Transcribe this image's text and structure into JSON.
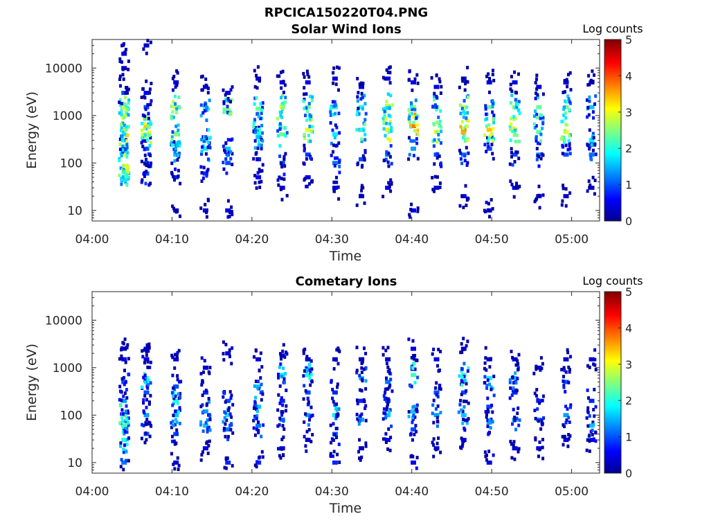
{
  "figure_title": "RPCICA150220T04.PNG",
  "panels": [
    {
      "title": "Solar Wind Ions",
      "ylabel": "Energy (eV)",
      "xlabel": "Time",
      "colorbar_label": "Log counts"
    },
    {
      "title": "Cometary Ions",
      "ylabel": "Energy (eV)",
      "xlabel": "Time",
      "colorbar_label": "Log counts"
    }
  ],
  "chart_data": [
    {
      "type": "heatmap",
      "title": "Solar Wind Ions",
      "xlabel": "Time",
      "ylabel": "Energy (eV)",
      "x_tick_labels": [
        "04:00",
        "04:10",
        "04:20",
        "04:30",
        "04:40",
        "04:50",
        "05:00"
      ],
      "x_tick_minutes": [
        0,
        10,
        20,
        30,
        40,
        50,
        60
      ],
      "xlim_minutes": [
        0,
        63.5
      ],
      "y_scale": "log",
      "ylim": [
        6,
        40000
      ],
      "y_tick_labels": [
        "10",
        "100",
        "1000",
        "10000"
      ],
      "y_ticks": [
        10,
        100,
        1000,
        10000
      ],
      "colorbar": {
        "label": "Log counts",
        "range": [
          0,
          5
        ],
        "ticks": [
          "0",
          "1",
          "2",
          "3",
          "4",
          "5"
        ],
        "colormap": "jet"
      },
      "scans": [
        {
          "t": 4.0,
          "points": [
            [
              50,
              2.6
            ],
            [
              70,
              3.0
            ],
            [
              150,
              2.9
            ],
            [
              300,
              2.0
            ],
            [
              500,
              3.4
            ],
            [
              1000,
              3.0
            ],
            [
              1500,
              3.0
            ],
            [
              3000,
              1.0
            ],
            [
              10000,
              0.4
            ],
            [
              20000,
              0.5
            ]
          ]
        },
        {
          "t": 6.8,
          "points": [
            [
              60,
              1.0
            ],
            [
              100,
              1.2
            ],
            [
              200,
              1.0
            ],
            [
              400,
              2.8
            ],
            [
              600,
              3.4
            ],
            [
              1500,
              1.0
            ],
            [
              3000,
              0.6
            ],
            [
              30000,
              0.4
            ]
          ]
        },
        {
          "t": 10.5,
          "points": [
            [
              10,
              0.4
            ],
            [
              50,
              0.8
            ],
            [
              150,
              1.6
            ],
            [
              250,
              2.0
            ],
            [
              400,
              2.6
            ],
            [
              1500,
              2.8
            ],
            [
              5000,
              0.5
            ]
          ]
        },
        {
          "t": 14.2,
          "points": [
            [
              10,
              0.4
            ],
            [
              60,
              0.8
            ],
            [
              200,
              1.8
            ],
            [
              300,
              2.0
            ],
            [
              1400,
              2.2
            ],
            [
              4000,
              0.5
            ]
          ]
        },
        {
          "t": 17.0,
          "points": [
            [
              10,
              0.5
            ],
            [
              100,
              1.0
            ],
            [
              200,
              1.6
            ],
            [
              1300,
              2.6
            ],
            [
              3000,
              0.5
            ]
          ]
        },
        {
          "t": 20.8,
          "points": [
            [
              50,
              0.6
            ],
            [
              120,
              0.8
            ],
            [
              350,
              1.6
            ],
            [
              500,
              2.2
            ],
            [
              1400,
              2.4
            ],
            [
              6000,
              0.4
            ]
          ]
        },
        {
          "t": 23.8,
          "points": [
            [
              30,
              0.5
            ],
            [
              100,
              1.0
            ],
            [
              400,
              2.4
            ],
            [
              1500,
              3.0
            ],
            [
              5000,
              0.6
            ]
          ]
        },
        {
          "t": 27.0,
          "points": [
            [
              50,
              0.5
            ],
            [
              150,
              0.9
            ],
            [
              500,
              3.0
            ],
            [
              1500,
              2.4
            ],
            [
              5000,
              0.5
            ]
          ]
        },
        {
          "t": 30.4,
          "points": [
            [
              30,
              0.4
            ],
            [
              100,
              1.2
            ],
            [
              400,
              1.8
            ],
            [
              1500,
              2.0
            ],
            [
              6000,
              0.4
            ]
          ]
        },
        {
          "t": 33.7,
          "points": [
            [
              20,
              0.5
            ],
            [
              120,
              1.0
            ],
            [
              500,
              2.6
            ],
            [
              1500,
              2.0
            ],
            [
              4000,
              0.4
            ]
          ]
        },
        {
          "t": 37.0,
          "points": [
            [
              30,
              0.6
            ],
            [
              150,
              1.2
            ],
            [
              500,
              3.2
            ],
            [
              1600,
              2.8
            ],
            [
              6000,
              0.5
            ]
          ]
        },
        {
          "t": 40.2,
          "points": [
            [
              10,
              0.5
            ],
            [
              200,
              1.4
            ],
            [
              600,
              3.8
            ],
            [
              1500,
              2.6
            ],
            [
              5000,
              0.5
            ]
          ]
        },
        {
          "t": 43.1,
          "points": [
            [
              30,
              0.4
            ],
            [
              150,
              1.0
            ],
            [
              450,
              3.0
            ],
            [
              1500,
              2.4
            ],
            [
              4000,
              0.5
            ]
          ]
        },
        {
          "t": 46.5,
          "points": [
            [
              20,
              0.5
            ],
            [
              150,
              1.2
            ],
            [
              500,
              3.7
            ],
            [
              1500,
              2.8
            ],
            [
              6000,
              0.5
            ]
          ]
        },
        {
          "t": 49.7,
          "points": [
            [
              10,
              0.6
            ],
            [
              200,
              1.0
            ],
            [
              500,
              3.4
            ],
            [
              1500,
              2.4
            ],
            [
              5000,
              0.5
            ]
          ]
        },
        {
          "t": 52.9,
          "points": [
            [
              30,
              0.5
            ],
            [
              150,
              1.0
            ],
            [
              500,
              3.2
            ],
            [
              1500,
              2.6
            ],
            [
              5000,
              0.5
            ]
          ]
        },
        {
          "t": 55.9,
          "points": [
            [
              20,
              0.4
            ],
            [
              150,
              1.4
            ],
            [
              450,
              2.4
            ],
            [
              1500,
              2.4
            ],
            [
              4000,
              0.4
            ]
          ]
        },
        {
          "t": 59.3,
          "points": [
            [
              20,
              0.4
            ],
            [
              150,
              1.0
            ],
            [
              450,
              3.0
            ],
            [
              1500,
              2.4
            ],
            [
              5000,
              0.5
            ]
          ]
        },
        {
          "t": 62.5,
          "points": [
            [
              30,
              0.4
            ],
            [
              150,
              1.2
            ],
            [
              300,
              1.8
            ],
            [
              1500,
              1.6
            ],
            [
              5000,
              0.4
            ]
          ]
        }
      ]
    },
    {
      "type": "heatmap",
      "title": "Cometary Ions",
      "xlabel": "Time",
      "ylabel": "Energy (eV)",
      "x_tick_labels": [
        "04:00",
        "04:10",
        "04:20",
        "04:30",
        "04:40",
        "04:50",
        "05:00"
      ],
      "x_tick_minutes": [
        0,
        10,
        20,
        30,
        40,
        50,
        60
      ],
      "xlim_minutes": [
        0,
        63.5
      ],
      "y_scale": "log",
      "ylim": [
        6,
        40000
      ],
      "y_tick_labels": [
        "10",
        "100",
        "1000",
        "10000"
      ],
      "y_ticks": [
        10,
        100,
        1000,
        10000
      ],
      "colorbar": {
        "label": "Log counts",
        "range": [
          0,
          5
        ],
        "ticks": [
          "0",
          "1",
          "2",
          "3",
          "4",
          "5"
        ],
        "colormap": "jet"
      },
      "scans": [
        {
          "t": 4.0,
          "points": [
            [
              10,
              1.2
            ],
            [
              30,
              2.0
            ],
            [
              60,
              2.2
            ],
            [
              100,
              2.4
            ],
            [
              200,
              1.4
            ],
            [
              500,
              1.0
            ],
            [
              1500,
              0.6
            ],
            [
              2500,
              0.4
            ]
          ]
        },
        {
          "t": 6.8,
          "points": [
            [
              40,
              1.0
            ],
            [
              100,
              1.4
            ],
            [
              300,
              1.0
            ],
            [
              600,
              2.2
            ],
            [
              1500,
              0.5
            ],
            [
              2500,
              0.4
            ]
          ]
        },
        {
          "t": 10.5,
          "points": [
            [
              10,
              0.4
            ],
            [
              40,
              1.0
            ],
            [
              100,
              1.6
            ],
            [
              200,
              2.0
            ],
            [
              400,
              1.0
            ],
            [
              1500,
              0.4
            ]
          ]
        },
        {
          "t": 14.2,
          "points": [
            [
              20,
              0.5
            ],
            [
              60,
              1.6
            ],
            [
              120,
              1.4
            ],
            [
              300,
              0.8
            ],
            [
              1000,
              0.4
            ]
          ]
        },
        {
          "t": 17.0,
          "points": [
            [
              10,
              0.8
            ],
            [
              50,
              1.2
            ],
            [
              100,
              1.8
            ],
            [
              200,
              1.0
            ],
            [
              2000,
              0.5
            ]
          ]
        },
        {
          "t": 20.8,
          "points": [
            [
              10,
              0.8
            ],
            [
              60,
              1.2
            ],
            [
              150,
              1.6
            ],
            [
              400,
              1.6
            ],
            [
              1500,
              0.4
            ]
          ]
        },
        {
          "t": 23.8,
          "points": [
            [
              20,
              0.5
            ],
            [
              80,
              1.2
            ],
            [
              200,
              0.8
            ],
            [
              700,
              1.8
            ],
            [
              1800,
              0.5
            ]
          ]
        },
        {
          "t": 27.0,
          "points": [
            [
              30,
              0.6
            ],
            [
              100,
              1.4
            ],
            [
              300,
              1.0
            ],
            [
              700,
              2.0
            ],
            [
              1500,
              0.4
            ]
          ]
        },
        {
          "t": 30.4,
          "points": [
            [
              10,
              0.8
            ],
            [
              40,
              1.0
            ],
            [
              100,
              1.8
            ],
            [
              300,
              0.8
            ],
            [
              1500,
              0.4
            ]
          ]
        },
        {
          "t": 33.7,
          "points": [
            [
              20,
              0.5
            ],
            [
              80,
              1.4
            ],
            [
              200,
              0.8
            ],
            [
              600,
              1.6
            ],
            [
              1500,
              0.4
            ]
          ]
        },
        {
          "t": 37.0,
          "points": [
            [
              30,
              0.6
            ],
            [
              100,
              1.6
            ],
            [
              200,
              1.0
            ],
            [
              500,
              1.2
            ],
            [
              1500,
              0.4
            ]
          ]
        },
        {
          "t": 40.2,
          "points": [
            [
              10,
              0.6
            ],
            [
              50,
              1.0
            ],
            [
              120,
              1.6
            ],
            [
              700,
              2.2
            ],
            [
              2500,
              0.5
            ]
          ]
        },
        {
          "t": 43.1,
          "points": [
            [
              20,
              0.5
            ],
            [
              100,
              1.4
            ],
            [
              300,
              1.0
            ],
            [
              1500,
              0.5
            ]
          ]
        },
        {
          "t": 46.5,
          "points": [
            [
              30,
              0.6
            ],
            [
              100,
              1.6
            ],
            [
              300,
              1.0
            ],
            [
              700,
              2.2
            ],
            [
              2500,
              0.4
            ]
          ]
        },
        {
          "t": 49.7,
          "points": [
            [
              10,
              0.5
            ],
            [
              70,
              1.4
            ],
            [
              150,
              1.0
            ],
            [
              600,
              1.8
            ],
            [
              1500,
              0.4
            ]
          ]
        },
        {
          "t": 52.9,
          "points": [
            [
              20,
              0.5
            ],
            [
              80,
              1.4
            ],
            [
              300,
              0.8
            ],
            [
              600,
              1.6
            ],
            [
              1500,
              0.4
            ]
          ]
        },
        {
          "t": 55.9,
          "points": [
            [
              20,
              0.5
            ],
            [
              80,
              1.2
            ],
            [
              200,
              0.8
            ],
            [
              1000,
              0.4
            ]
          ]
        },
        {
          "t": 59.3,
          "points": [
            [
              30,
              0.5
            ],
            [
              100,
              1.4
            ],
            [
              500,
              1.0
            ],
            [
              1500,
              0.4
            ]
          ]
        },
        {
          "t": 62.5,
          "points": [
            [
              30,
              0.6
            ],
            [
              60,
              1.6
            ],
            [
              200,
              0.8
            ],
            [
              1500,
              0.4
            ]
          ]
        }
      ]
    }
  ]
}
